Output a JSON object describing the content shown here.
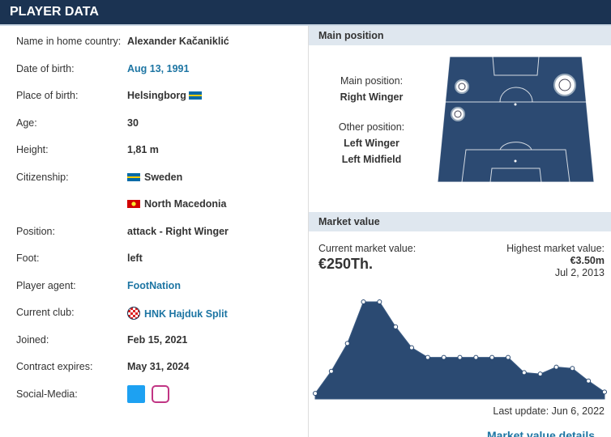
{
  "header": {
    "title": "PLAYER DATA"
  },
  "details": {
    "rows": [
      {
        "label": "Name in home country:",
        "value": "Alexander Kačaniklić"
      },
      {
        "label": "Date of birth:",
        "value": "Aug 13, 1991"
      },
      {
        "label": "Place of birth:",
        "value": "Helsingborg"
      },
      {
        "label": "Age:",
        "value": "30"
      },
      {
        "label": "Height:",
        "value": "1,81 m"
      },
      {
        "label": "Citizenship:",
        "values": [
          "Sweden",
          "North Macedonia"
        ]
      },
      {
        "label": "Position:",
        "value": "attack - Right Winger"
      },
      {
        "label": "Foot:",
        "value": "left"
      },
      {
        "label": "Player agent:",
        "value": "FootNation"
      },
      {
        "label": "Current club:",
        "value": "HNK Hajduk Split"
      },
      {
        "label": "Joined:",
        "value": "Feb 15, 2021"
      },
      {
        "label": "Contract expires:",
        "value": "May 31, 2024"
      },
      {
        "label": "Social-Media:"
      }
    ]
  },
  "main_position": {
    "title": "Main position",
    "main_label": "Main position:",
    "main": "Right Winger",
    "other_label": "Other position:",
    "others": [
      "Left Winger",
      "Left Midfield"
    ]
  },
  "market_value": {
    "title": "Market value",
    "current_label": "Current market value:",
    "current": "€250Th.",
    "highest_label": "Highest market value:",
    "highest": "€3.50m",
    "highest_date": "Jul 2, 2013",
    "last_update": "Last update: Jun 6, 2022",
    "details_link": "Market value details",
    "chart": {
      "type": "area",
      "values": [
        0.2,
        1.0,
        2.0,
        3.5,
        3.5,
        2.6,
        1.85,
        1.5,
        1.5,
        1.5,
        1.5,
        1.5,
        1.5,
        0.95,
        0.9,
        1.15,
        1.1,
        0.65,
        0.25
      ]
    }
  }
}
